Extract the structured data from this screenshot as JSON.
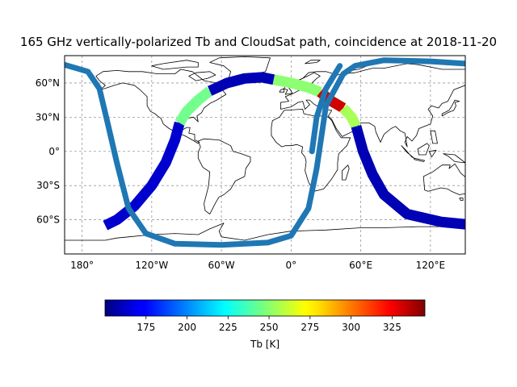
{
  "figure": {
    "title": "165 GHz vertically-polarized Tb and CloudSat path, coincidence at 2018-11-20"
  },
  "map": {
    "projection": "plate-carree",
    "lon_range": [
      -195,
      150
    ],
    "lat_range": [
      -90,
      84
    ],
    "x_ticks": [
      {
        "lon": -180,
        "label": "180°"
      },
      {
        "lon": -120,
        "label": "120°W"
      },
      {
        "lon": -60,
        "label": "60°W"
      },
      {
        "lon": 0,
        "label": "0°"
      },
      {
        "lon": 60,
        "label": "60°E"
      },
      {
        "lon": 120,
        "label": "120°E"
      }
    ],
    "y_ticks": [
      {
        "lat": 60,
        "label": "60°N"
      },
      {
        "lat": 30,
        "label": "30°N"
      },
      {
        "lat": 0,
        "label": "0°"
      },
      {
        "lat": -30,
        "label": "30°S"
      },
      {
        "lat": -60,
        "label": "60°S"
      }
    ],
    "gridlines": true,
    "gridline_style": "dashed gray",
    "cloudsat_path_color": "#1f77b4"
  },
  "colorbar": {
    "label": "Tb [K]",
    "colormap": "jet",
    "range": [
      150,
      345
    ],
    "ticks": [
      175,
      200,
      225,
      250,
      275,
      300,
      325
    ],
    "orientation": "horizontal"
  },
  "chart_data": {
    "type": "map-swath",
    "title": "165 GHz vertically-polarized Tb and CloudSat path, coincidence at 2018-11-20",
    "variable": "Tb [K]",
    "swath_segments": [
      {
        "lon": [
          -160,
          -150,
          -135,
          -120,
          -108,
          -100,
          -96
        ],
        "lat": [
          -65,
          -60,
          -48,
          -30,
          -10,
          10,
          25
        ],
        "tb": 165
      },
      {
        "lon": [
          -96,
          -90,
          -80,
          -70
        ],
        "lat": [
          25,
          35,
          45,
          53
        ],
        "tb": 245
      },
      {
        "lon": [
          -70,
          -55,
          -40,
          -25,
          -15
        ],
        "lat": [
          53,
          60,
          64,
          65,
          63
        ],
        "tb": 160
      },
      {
        "lon": [
          -15,
          0,
          15,
          25
        ],
        "lat": [
          63,
          60,
          56,
          52
        ],
        "tb": 250
      },
      {
        "lon": [
          25,
          35,
          45
        ],
        "lat": [
          52,
          44,
          38
        ],
        "tb": 330
      },
      {
        "lon": [
          45,
          52,
          56
        ],
        "lat": [
          38,
          30,
          22
        ],
        "tb": 255
      },
      {
        "lon": [
          56,
          62,
          70,
          80,
          100,
          130,
          150
        ],
        "lat": [
          22,
          0,
          -20,
          -38,
          -55,
          -62,
          -64
        ],
        "tb": 160
      }
    ],
    "cloudsat_path": {
      "lon": [
        -195,
        -175,
        -165,
        -158,
        -150,
        -140,
        -125,
        -100,
        -60,
        -20,
        0,
        15,
        22,
        30,
        45,
        55,
        80,
        120,
        150
      ],
      "lat": [
        76,
        70,
        55,
        25,
        -10,
        -50,
        -72,
        -81,
        -82,
        -80,
        -74,
        -50,
        -15,
        40,
        68,
        75,
        80,
        79,
        77
      ]
    },
    "cloudsat_branch": {
      "lon": [
        18,
        22,
        30,
        42
      ],
      "lat": [
        0,
        30,
        55,
        75
      ]
    },
    "coastline": "world coastlines (Natural Earth, low resolution)"
  }
}
